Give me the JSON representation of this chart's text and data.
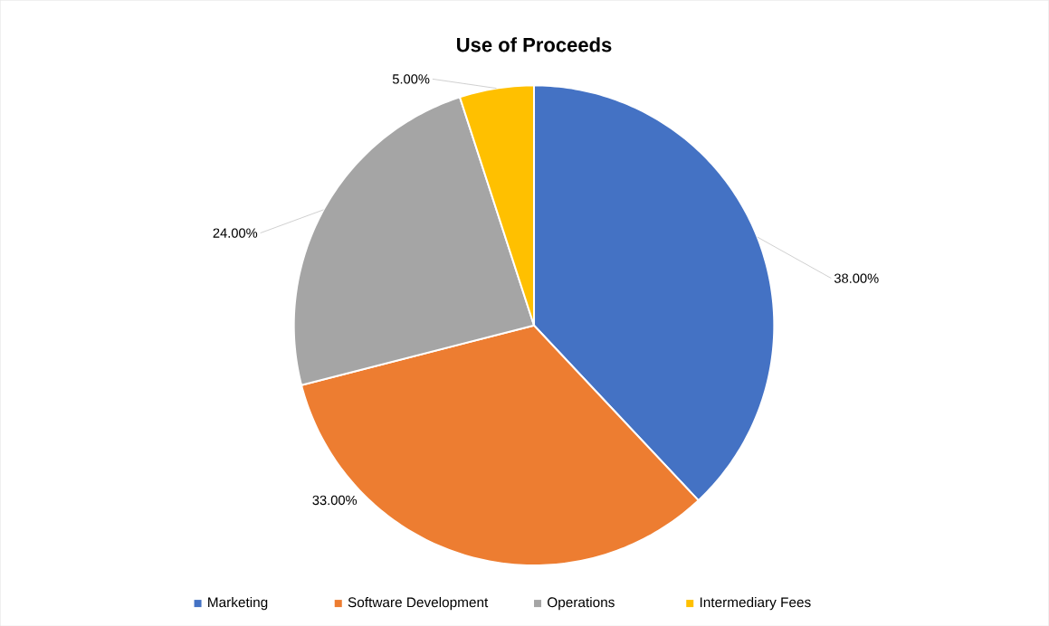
{
  "chart_data": {
    "type": "pie",
    "title": "Use of Proceeds",
    "categories": [
      "Marketing",
      "Software Development",
      "Operations",
      "Intermediary Fees"
    ],
    "values": [
      38,
      33,
      24,
      5
    ],
    "colors": [
      "#4472c4",
      "#ed7d31",
      "#a5a5a5",
      "#ffc000"
    ],
    "value_labels": [
      "38.00%",
      "33.00%",
      "24.00%",
      "5.00%"
    ],
    "legend": "bottom"
  }
}
